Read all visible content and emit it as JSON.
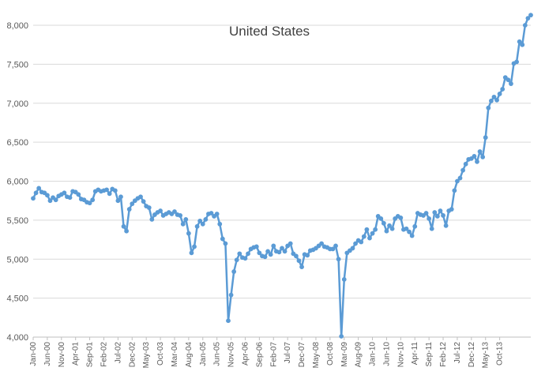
{
  "chart_data": {
    "type": "line",
    "title": "United States",
    "xlabel": "",
    "ylabel": "",
    "ylim": [
      4000,
      8000
    ],
    "yticks": [
      4000,
      4500,
      5000,
      5500,
      6000,
      6500,
      7000,
      7500,
      8000
    ],
    "yticklabels": [
      "4,000",
      "4,500",
      "5,000",
      "5,500",
      "6,000",
      "6,500",
      "7,000",
      "7,500",
      "8,000"
    ],
    "xtick_labels": [
      "Jan-00",
      "Jun-00",
      "Nov-00",
      "Apr-01",
      "Sep-01",
      "Feb-02",
      "Jul-02",
      "Dec-02",
      "May-03",
      "Oct-03",
      "Mar-04",
      "Aug-04",
      "Jan-05",
      "Jun-05",
      "Nov-05",
      "Apr-06",
      "Sep-06",
      "Feb-07",
      "Jul-07",
      "Dec-07",
      "May-08",
      "Oct-08",
      "Mar-09",
      "Aug-09",
      "Jan-10",
      "Jun-10",
      "Nov-10",
      "Apr-11",
      "Sep-11",
      "Feb-12",
      "Jul-12",
      "Dec-12",
      "May-13",
      "Oct-13"
    ],
    "grid": true,
    "legend": "none",
    "line_color": "#5B9BD5",
    "grid_color": "#D9D9D9",
    "axis_color": "#BFBFBF",
    "x_start": "2000-01",
    "x_interval": "month",
    "series": [
      {
        "values": [
          5780,
          5850,
          5910,
          5860,
          5850,
          5820,
          5750,
          5790,
          5760,
          5810,
          5830,
          5850,
          5800,
          5790,
          5870,
          5860,
          5830,
          5770,
          5760,
          5730,
          5720,
          5760,
          5870,
          5890,
          5870,
          5880,
          5890,
          5840,
          5900,
          5880,
          5750,
          5800,
          5420,
          5360,
          5640,
          5710,
          5750,
          5780,
          5800,
          5740,
          5680,
          5660,
          5510,
          5570,
          5600,
          5620,
          5560,
          5580,
          5600,
          5580,
          5610,
          5570,
          5560,
          5450,
          5510,
          5330,
          5080,
          5160,
          5420,
          5490,
          5450,
          5510,
          5580,
          5590,
          5550,
          5580,
          5450,
          5260,
          5200,
          4210,
          4540,
          4840,
          4990,
          5070,
          5020,
          5010,
          5070,
          5130,
          5150,
          5160,
          5080,
          5040,
          5030,
          5100,
          5060,
          5170,
          5100,
          5090,
          5140,
          5100,
          5170,
          5200,
          5070,
          5040,
          4980,
          4900,
          5060,
          5050,
          5110,
          5120,
          5140,
          5170,
          5200,
          5160,
          5150,
          5130,
          5130,
          5170,
          5000,
          4010,
          4740,
          5080,
          5110,
          5140,
          5200,
          5240,
          5220,
          5290,
          5380,
          5270,
          5330,
          5380,
          5550,
          5520,
          5460,
          5360,
          5430,
          5390,
          5520,
          5550,
          5530,
          5380,
          5390,
          5350,
          5300,
          5420,
          5590,
          5570,
          5560,
          5590,
          5520,
          5390,
          5600,
          5550,
          5620,
          5560,
          5430,
          5620,
          5640,
          5880,
          6000,
          6040,
          6140,
          6220,
          6280,
          6290,
          6320,
          6250,
          6380,
          6310,
          6560,
          6940,
          7030,
          7080,
          7040,
          7120,
          7180,
          7330,
          7300,
          7250,
          7510,
          7530,
          7790,
          7750,
          8000,
          8090,
          8130
        ]
      }
    ]
  }
}
